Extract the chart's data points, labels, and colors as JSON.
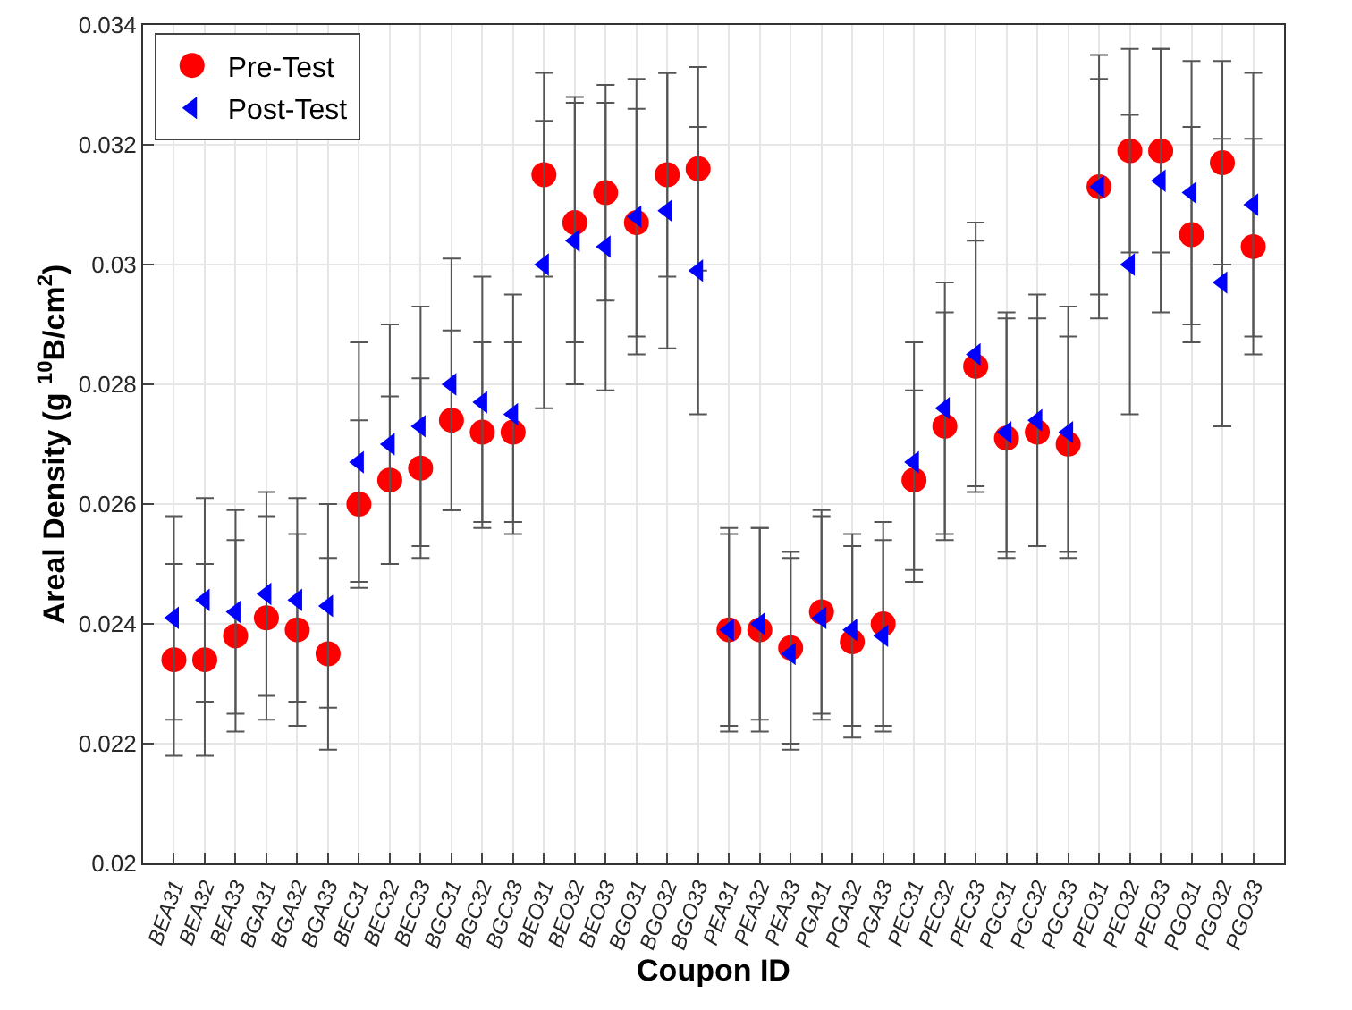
{
  "chart_data": {
    "type": "scatter",
    "xlabel": "Coupon ID",
    "ylabel": "Areal Density (g $^{10}$B/cm$^{2}$)",
    "categories": [
      "BEA31",
      "BEA32",
      "BEA33",
      "BGA31",
      "BGA32",
      "BGA33",
      "BEC31",
      "BEC32",
      "BEC33",
      "BGC31",
      "BGC32",
      "BGC33",
      "BEO31",
      "BEO32",
      "BEO33",
      "BGO31",
      "BGO32",
      "BGO33",
      "PEA31",
      "PEA32",
      "PEA33",
      "PGA31",
      "PGA32",
      "PGA33",
      "PEC31",
      "PEC32",
      "PEC33",
      "PGC31",
      "PGC32",
      "PGC33",
      "PEO31",
      "PEO32",
      "PEO33",
      "PGO31",
      "PGO32",
      "PGO33"
    ],
    "series": [
      {
        "name": "Pre-Test",
        "color": "#ff0000",
        "marker": "circle",
        "values": [
          0.0234,
          0.0234,
          0.0238,
          0.0241,
          0.0239,
          0.0235,
          0.026,
          0.0264,
          0.0266,
          0.0274,
          0.0272,
          0.0272,
          0.0315,
          0.0307,
          0.0312,
          0.0307,
          0.0315,
          0.0316,
          0.0239,
          0.0239,
          0.0236,
          0.0242,
          0.0237,
          0.024,
          0.0264,
          0.0273,
          0.0283,
          0.0271,
          0.0272,
          0.027,
          0.0313,
          0.0319,
          0.0319,
          0.0305,
          0.0317,
          0.0303
        ],
        "errors": [
          0.0016,
          0.0016,
          0.0016,
          0.0017,
          0.0016,
          0.0016,
          0.0014,
          0.0014,
          0.0015,
          0.0015,
          0.0015,
          0.0015,
          0.0017,
          0.002,
          0.0018,
          0.0019,
          0.0017,
          0.0017,
          0.0017,
          0.0017,
          0.0016,
          0.0017,
          0.0016,
          0.0017,
          0.0015,
          0.0019,
          0.0021,
          0.002,
          0.0019,
          0.0018,
          0.0022,
          0.0017,
          0.0017,
          0.0018,
          0.0017,
          0.0018
        ]
      },
      {
        "name": "Post-Test",
        "color": "#0000ff",
        "marker": "triangle",
        "values": [
          0.0241,
          0.0244,
          0.0242,
          0.0245,
          0.0244,
          0.0243,
          0.0267,
          0.027,
          0.0273,
          0.028,
          0.0277,
          0.0275,
          0.03,
          0.0304,
          0.0303,
          0.0308,
          0.0309,
          0.0299,
          0.0239,
          0.024,
          0.0235,
          0.0241,
          0.0239,
          0.0238,
          0.0267,
          0.0276,
          0.0285,
          0.0272,
          0.0274,
          0.0272,
          0.0313,
          0.03,
          0.0314,
          0.0312,
          0.0297,
          0.031
        ],
        "errors": [
          0.0017,
          0.0017,
          0.0017,
          0.0017,
          0.0017,
          0.0017,
          0.002,
          0.002,
          0.002,
          0.0021,
          0.0021,
          0.002,
          0.0024,
          0.0024,
          0.0024,
          0.0023,
          0.0023,
          0.0024,
          0.0016,
          0.0016,
          0.0016,
          0.0017,
          0.0016,
          0.0016,
          0.002,
          0.0021,
          0.0022,
          0.002,
          0.0021,
          0.0021,
          0.0018,
          0.0025,
          0.0022,
          0.0022,
          0.0024,
          0.0022
        ]
      }
    ],
    "ylim": [
      0.02,
      0.034
    ],
    "yticks": [
      0.02,
      0.022,
      0.024,
      0.026,
      0.028,
      0.03,
      0.032,
      0.034
    ],
    "grid": true,
    "legend": "top left"
  }
}
